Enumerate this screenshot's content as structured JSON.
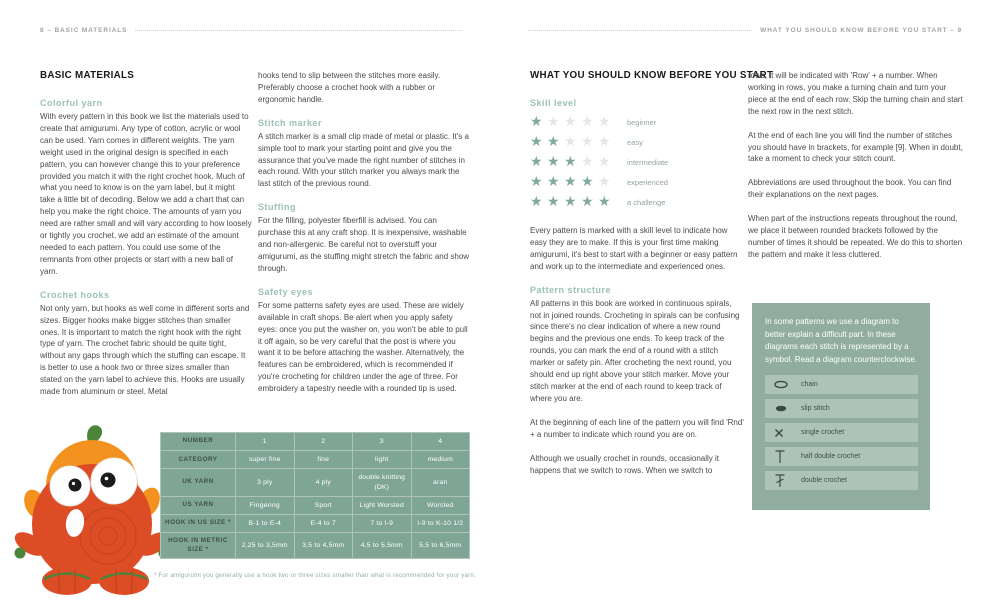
{
  "colors": {
    "sage_table": "#7fa596",
    "sage_box": "#90ad9f",
    "sage_box_row": "#aec3b8",
    "heading_green": "#9cc2b0",
    "star_filled": "#82a99b",
    "star_empty": "#e4e7e4",
    "footnote_green": "#8fb3a4",
    "body_text": "#4b4b4b",
    "creature_red": "#dd4d25",
    "creature_orange": "#f3921f",
    "creature_green": "#4a8539"
  },
  "header": {
    "left_label": "8 – BASIC MATERIALS",
    "right_label": "WHAT YOU SHOULD KNOW BEFORE YOU START – 9"
  },
  "left": {
    "page_title": "BASIC MATERIALS",
    "col1": {
      "s1_heading": "Colorful yarn",
      "s1_body": "With every pattern in this book we list the materials used to create that amigurumi. Any type of cotton, acrylic or wool can be used. Yarn comes in different weights. The yarn weight used in the original design is specified in each pattern, you can however change this to your preference provided you match it with the right crochet hook. Much of what you need to know is on the yarn label, but it might take a little bit of decoding. Below we add a chart that can help you make the right choice. The amounts of yarn you need are rather small and will vary according to how loosely or tightly you crochet, we add an estimate of the amount needed to each pattern. You could use some of the remnants from other projects or start with a new ball of yarn.",
      "s2_heading": "Crochet hooks",
      "s2_body": "Not only yarn, but hooks as well come in different sorts and sizes. Bigger hooks make bigger stitches than smaller ones. It is important to match the right hook with the right type of yarn. The crochet fabric should be quite tight, without any gaps through which the stuffing can escape. It is better to use a hook two or three sizes smaller than stated on the yarn label to achieve this. Hooks are usually made from aluminum or steel. Metal"
    },
    "col2": {
      "intro": "hooks tend to slip between the stitches more easily. Preferably choose a crochet hook with a rubber or ergonomic handle.",
      "s1_heading": "Stitch marker",
      "s1_body": "A stitch marker is a small clip made of metal or plastic. It's a simple tool to mark your starting point and give you the assurance that you've made the right number of stitches in each round. With your stitch marker you always mark the last stitch of the previous round.",
      "s2_heading": "Stuffing",
      "s2_body": "For the filling, polyester fiberfill is advised. You can purchase this at any craft shop. It is inexpensive, washable and non-allergenic. Be careful not to overstuff your amigurumi, as the stuffing might stretch the fabric and show through.",
      "s3_heading": "Safety eyes",
      "s3_body": "For some patterns safety eyes are used. These are widely available in craft shops. Be alert when you apply safety eyes: once you put the washer on, you won't be able to pull it off again, so be very careful that the post is where you want it to be before attaching the washer. Alternatively, the features can be embroidered, which is recommended if you're crocheting for children under the age of three. For embroidery a tapestry needle with a rounded tip is used."
    },
    "photo_label": "amigurumi pumpkin monster",
    "table": {
      "rows": [
        {
          "label": "NUMBER",
          "values": [
            "1",
            "2",
            "3",
            "4"
          ]
        },
        {
          "label": "CATEGORY",
          "values": [
            "super fine",
            "fine",
            "light",
            "medium"
          ]
        },
        {
          "label": "UK YARN",
          "values": [
            "3 ply",
            "4 ply",
            "double knitting (DK)",
            "aran"
          ]
        },
        {
          "label": "US YARN",
          "values": [
            "Fingering",
            "Sport",
            "Light Worsted",
            "Worsted"
          ]
        },
        {
          "label": "HOOK IN US SIZE *",
          "values": [
            "B-1 to E-4",
            "E-4 to 7",
            "7 to I-9",
            "I-9 to K-10 1/2"
          ]
        },
        {
          "label": "HOOK IN METRIC SIZE *",
          "values": [
            "2,25 to 3,5mm",
            "3,5 to 4,5mm",
            "4,5 to 5,5mm",
            "5,5 to 6,5mm"
          ]
        }
      ],
      "footnote": "* For amigurumi you generally use a hook two or three sizes smaller than what is recommended for your yarn."
    }
  },
  "right": {
    "page_title": "WHAT YOU SHOULD KNOW BEFORE YOU START",
    "col1": {
      "skill_heading": "Skill level",
      "skill_levels": [
        {
          "stars": 1,
          "label": "beginner"
        },
        {
          "stars": 2,
          "label": "easy"
        },
        {
          "stars": 3,
          "label": "intermediate"
        },
        {
          "stars": 4,
          "label": "experienced"
        },
        {
          "stars": 5,
          "label": "a challenge"
        }
      ],
      "skill_body": "Every pattern is marked with a skill level to indicate how easy they are to make. If this is your first time making amigurumi, it's best to start with a beginner or easy pattern and work up to the intermediate and experienced ones.",
      "pattern_heading": "Pattern structure",
      "pattern_body1": "All patterns in this book are worked in continuous spirals, not in joined rounds. Crocheting in spirals can be confusing since there's no clear indication of where a new round begins and the previous one ends. To keep track of the rounds, you can mark the end of a round with a stitch marker or safety pin. After crocheting the next round, you should end up right above your stitch marker. Move your stitch marker at the end of each round to keep track of where you are.",
      "pattern_body2": "At the beginning of each line of the pattern you will find 'Rnd' + a number to indicate which round you are on.",
      "pattern_body3": "Although we usually crochet in rounds, occasionally it happens that we switch to rows. When we switch to"
    },
    "col2": {
      "p1": "rows, it will be indicated with 'Row' + a number. When working in rows, you make a turning chain and turn your piece at the end of each row. Skip the turning chain and start the next row in the next stitch.",
      "p2": "At the end of each line you will find the number of stitches you should have in brackets, for example [9]. When in doubt, take a moment to check your stitch count.",
      "p3": "Abbreviations are used throughout the book. You can find their explanations on the next pages.",
      "p4": "When part of the instructions repeats throughout the round, we place it between rounded brackets followed by the number of times it should be repeated. We do this to shorten the pattern and make it less cluttered.",
      "diagram_box": {
        "intro": "In some patterns we use a diagram to better explain a difficult part. In these diagrams each stitch is represented by a symbol. Read a diagram counterclockwise.",
        "legend": [
          {
            "icon": "chain-icon",
            "label": "chain"
          },
          {
            "icon": "slip-stitch-icon",
            "label": "slip stitch"
          },
          {
            "icon": "single-crochet-icon",
            "label": "single crochet"
          },
          {
            "icon": "half-double-crochet-icon",
            "label": "half double crochet"
          },
          {
            "icon": "double-crochet-icon",
            "label": "double crochet"
          }
        ]
      }
    }
  }
}
